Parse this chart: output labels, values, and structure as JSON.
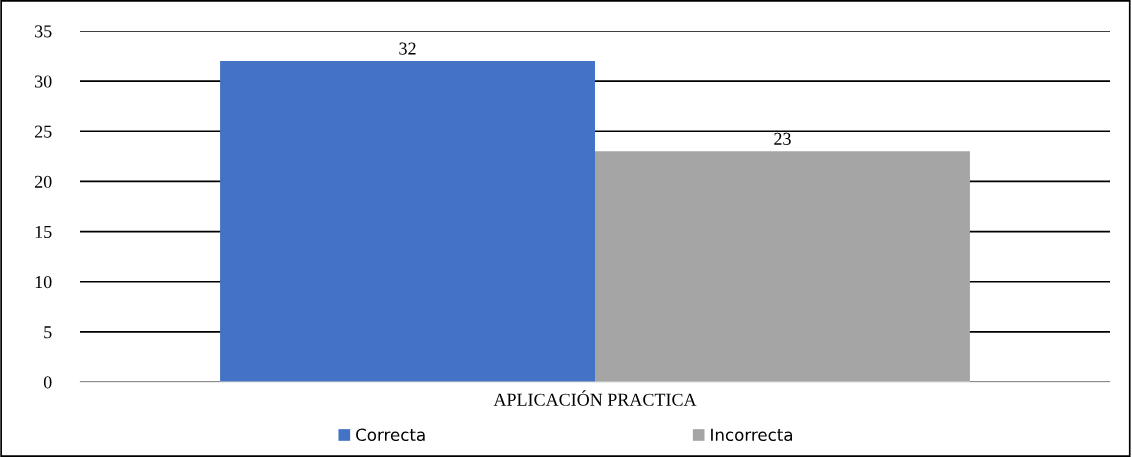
{
  "chart_data": {
    "type": "bar",
    "categories": [
      "APLICACIÓN PRACTICA"
    ],
    "series": [
      {
        "name": "Correcta",
        "color": "#4472c4",
        "values": [
          32
        ]
      },
      {
        "name": "Incorrecta",
        "color": "#a5a5a5",
        "values": [
          23
        ]
      }
    ],
    "ylim": [
      0,
      35
    ],
    "yticks": [
      0,
      5,
      10,
      15,
      20,
      25,
      30,
      35
    ],
    "grid": "y",
    "legend": "bottom",
    "data_labels": true
  }
}
